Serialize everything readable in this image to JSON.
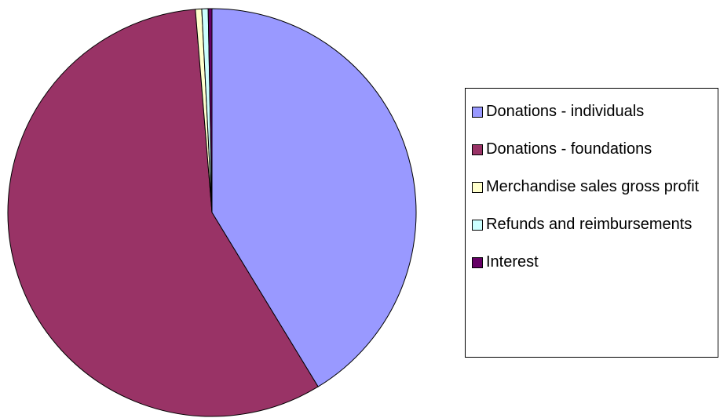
{
  "chart_data": {
    "type": "pie",
    "categories": [
      "Donations - individuals",
      "Donations - foundations",
      "Merchandise sales gross profit",
      "Refunds and reimbursements",
      "Interest"
    ],
    "values": [
      41.3,
      57.4,
      0.5,
      0.5,
      0.3
    ],
    "colors": [
      "#9999ff",
      "#993366",
      "#ffffcc",
      "#ccffff",
      "#660066"
    ],
    "legend": "right"
  }
}
